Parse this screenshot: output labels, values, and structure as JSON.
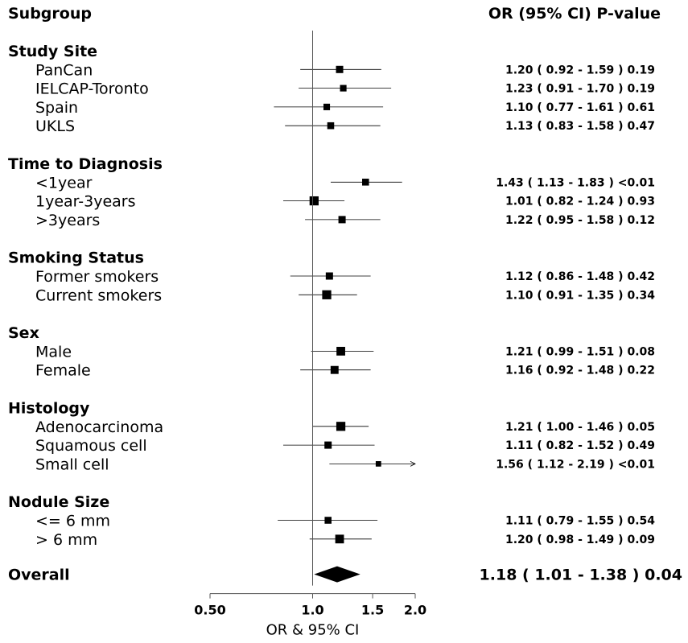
{
  "header": {
    "subgroup": "Subgroup",
    "stats": "OR (95% CI) P-value"
  },
  "chart_data": {
    "type": "forest",
    "xlabel": "OR & 95% CI",
    "xscale": "log",
    "xlim": [
      0.5,
      2.0
    ],
    "xticks": [
      "0.50",
      "1.0",
      "1.5",
      "2.0"
    ],
    "xtick_values": [
      0.5,
      1.0,
      1.5,
      2.0
    ],
    "reference_line": 1.0,
    "colors": {
      "marker": "#000000",
      "ci_line": "#000000",
      "reference": "#555555"
    },
    "groups": [
      {
        "name": "Study Site",
        "rows": [
          {
            "label": "PanCan",
            "or": 1.2,
            "lo": 0.92,
            "hi": 1.59,
            "p": "0.19",
            "text": "1.20 ( 0.92 - 1.59 )  0.19",
            "weight": 1.0
          },
          {
            "label": "IELCAP-Toronto",
            "or": 1.23,
            "lo": 0.91,
            "hi": 1.7,
            "p": "0.19",
            "text": "1.23 ( 0.91 - 1.70 )  0.19",
            "weight": 0.9
          },
          {
            "label": "Spain",
            "or": 1.1,
            "lo": 0.77,
            "hi": 1.61,
            "p": "0.61",
            "text": "1.10 ( 0.77 - 1.61 )  0.61",
            "weight": 0.9
          },
          {
            "label": "UKLS",
            "or": 1.13,
            "lo": 0.83,
            "hi": 1.58,
            "p": "0.47",
            "text": "1.13 ( 0.83 - 1.58 )  0.47",
            "weight": 0.95
          }
        ]
      },
      {
        "name": "Time to Diagnosis",
        "rows": [
          {
            "label": "<1year",
            "or": 1.43,
            "lo": 1.13,
            "hi": 1.83,
            "p": "<0.01",
            "text": "1.43 ( 1.13 - 1.83 ) <0.01",
            "weight": 0.95
          },
          {
            "label": "1year-3years",
            "or": 1.01,
            "lo": 0.82,
            "hi": 1.24,
            "p": "0.93",
            "text": "1.01 ( 0.82 - 1.24 )  0.93",
            "weight": 1.25
          },
          {
            "label": ">3years",
            "or": 1.22,
            "lo": 0.95,
            "hi": 1.58,
            "p": "0.12",
            "text": "1.22 ( 0.95 - 1.58 )  0.12",
            "weight": 1.0
          }
        ]
      },
      {
        "name": "Smoking Status",
        "rows": [
          {
            "label": "Former smokers",
            "or": 1.12,
            "lo": 0.86,
            "hi": 1.48,
            "p": "0.42",
            "text": "1.12 ( 0.86 - 1.48 )  0.42",
            "weight": 1.0
          },
          {
            "label": "Current smokers",
            "or": 1.1,
            "lo": 0.91,
            "hi": 1.35,
            "p": "0.34",
            "text": "1.10 ( 0.91 - 1.35 )  0.34",
            "weight": 1.25
          }
        ]
      },
      {
        "name": "Sex",
        "rows": [
          {
            "label": "Male",
            "or": 1.21,
            "lo": 0.99,
            "hi": 1.51,
            "p": "0.08",
            "text": "1.21 ( 0.99 - 1.51 )  0.08",
            "weight": 1.2
          },
          {
            "label": "Female",
            "or": 1.16,
            "lo": 0.92,
            "hi": 1.48,
            "p": "0.22",
            "text": "1.16 ( 0.92 - 1.48 )  0.22",
            "weight": 1.1
          }
        ]
      },
      {
        "name": "Histology",
        "rows": [
          {
            "label": "Adenocarcinoma",
            "or": 1.21,
            "lo": 1.0,
            "hi": 1.46,
            "p": "0.05",
            "text": "1.21 ( 1.00 - 1.46 )  0.05",
            "weight": 1.25
          },
          {
            "label": "Squamous cell",
            "or": 1.11,
            "lo": 0.82,
            "hi": 1.52,
            "p": "0.49",
            "text": "1.11 ( 0.82 - 1.52 )  0.49",
            "weight": 1.0
          },
          {
            "label": "Small cell",
            "or": 1.56,
            "lo": 1.12,
            "hi": 2.19,
            "p": "<0.01",
            "text": "1.56 ( 1.12 - 2.19 ) <0.01",
            "weight": 0.75,
            "clipped_high": true
          }
        ]
      },
      {
        "name": "Nodule Size",
        "rows": [
          {
            "label": "<= 6 mm",
            "or": 1.11,
            "lo": 0.79,
            "hi": 1.55,
            "p": "0.54",
            "text": "1.11 ( 0.79 - 1.55 )  0.54",
            "weight": 0.95
          },
          {
            "label": "> 6 mm",
            "or": 1.2,
            "lo": 0.98,
            "hi": 1.49,
            "p": "0.09",
            "text": "1.20 ( 0.98 - 1.49 )  0.09",
            "weight": 1.2
          }
        ]
      }
    ],
    "overall": {
      "label": "Overall",
      "or": 1.18,
      "lo": 1.01,
      "hi": 1.38,
      "p": "0.04",
      "text": "1.18 ( 1.01 - 1.38 )  0.04"
    }
  }
}
